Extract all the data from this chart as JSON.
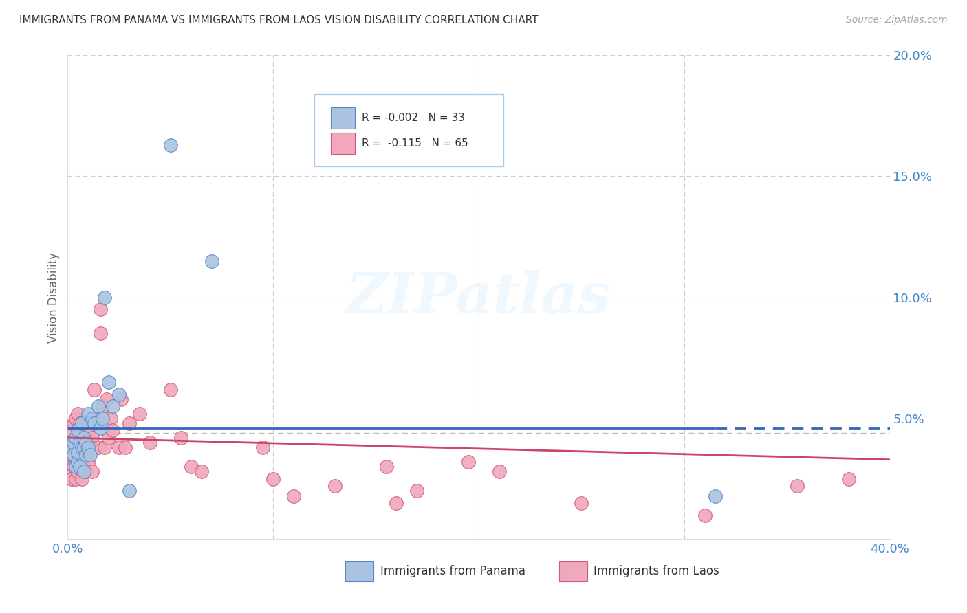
{
  "title": "IMMIGRANTS FROM PANAMA VS IMMIGRANTS FROM LAOS VISION DISABILITY CORRELATION CHART",
  "source": "Source: ZipAtlas.com",
  "ylabel": "Vision Disability",
  "xlim": [
    0.0,
    0.4
  ],
  "ylim": [
    0.0,
    0.2
  ],
  "watermark": "ZIPatlas",
  "legend_blue_r": "-0.002",
  "legend_blue_n": "33",
  "legend_pink_r": "-0.115",
  "legend_pink_n": "65",
  "blue_color": "#aac4e0",
  "pink_color": "#f0a8bc",
  "blue_edge_color": "#5588cc",
  "pink_edge_color": "#d05878",
  "blue_line_color": "#3366bb",
  "pink_line_color": "#cc4466",
  "grid_color": "#cccccc",
  "dashed_ref_color": "#bbbbbb",
  "blue_line_y": 0.046,
  "blue_line_solid_end": 0.315,
  "pink_line_y_start": 0.042,
  "pink_line_y_end": 0.033,
  "dashed_line_y": 0.044,
  "panama_x": [
    0.002,
    0.003,
    0.003,
    0.004,
    0.004,
    0.005,
    0.005,
    0.005,
    0.006,
    0.006,
    0.007,
    0.007,
    0.008,
    0.008,
    0.008,
    0.009,
    0.009,
    0.01,
    0.01,
    0.011,
    0.012,
    0.013,
    0.015,
    0.016,
    0.017,
    0.018,
    0.02,
    0.022,
    0.025,
    0.03,
    0.05,
    0.07,
    0.315
  ],
  "panama_y": [
    0.038,
    0.035,
    0.04,
    0.03,
    0.042,
    0.032,
    0.036,
    0.045,
    0.04,
    0.03,
    0.038,
    0.048,
    0.028,
    0.038,
    0.042,
    0.035,
    0.04,
    0.038,
    0.052,
    0.035,
    0.05,
    0.048,
    0.055,
    0.046,
    0.05,
    0.1,
    0.065,
    0.055,
    0.06,
    0.02,
    0.163,
    0.115,
    0.018
  ],
  "laos_x": [
    0.001,
    0.001,
    0.002,
    0.002,
    0.002,
    0.003,
    0.003,
    0.003,
    0.004,
    0.004,
    0.004,
    0.004,
    0.005,
    0.005,
    0.005,
    0.005,
    0.006,
    0.006,
    0.006,
    0.007,
    0.007,
    0.007,
    0.008,
    0.008,
    0.009,
    0.009,
    0.01,
    0.01,
    0.011,
    0.012,
    0.012,
    0.013,
    0.014,
    0.015,
    0.016,
    0.016,
    0.017,
    0.018,
    0.019,
    0.02,
    0.021,
    0.022,
    0.025,
    0.026,
    0.028,
    0.03,
    0.035,
    0.04,
    0.05,
    0.055,
    0.06,
    0.065,
    0.095,
    0.1,
    0.11,
    0.13,
    0.155,
    0.16,
    0.17,
    0.195,
    0.21,
    0.25,
    0.31,
    0.355,
    0.38
  ],
  "laos_y": [
    0.03,
    0.04,
    0.025,
    0.035,
    0.045,
    0.03,
    0.038,
    0.048,
    0.025,
    0.035,
    0.04,
    0.05,
    0.028,
    0.035,
    0.042,
    0.052,
    0.03,
    0.038,
    0.048,
    0.025,
    0.038,
    0.045,
    0.03,
    0.042,
    0.028,
    0.038,
    0.032,
    0.045,
    0.04,
    0.028,
    0.042,
    0.062,
    0.05,
    0.038,
    0.085,
    0.095,
    0.055,
    0.038,
    0.058,
    0.042,
    0.05,
    0.045,
    0.038,
    0.058,
    0.038,
    0.048,
    0.052,
    0.04,
    0.062,
    0.042,
    0.03,
    0.028,
    0.038,
    0.025,
    0.018,
    0.022,
    0.03,
    0.015,
    0.02,
    0.032,
    0.028,
    0.015,
    0.01,
    0.022,
    0.025
  ]
}
